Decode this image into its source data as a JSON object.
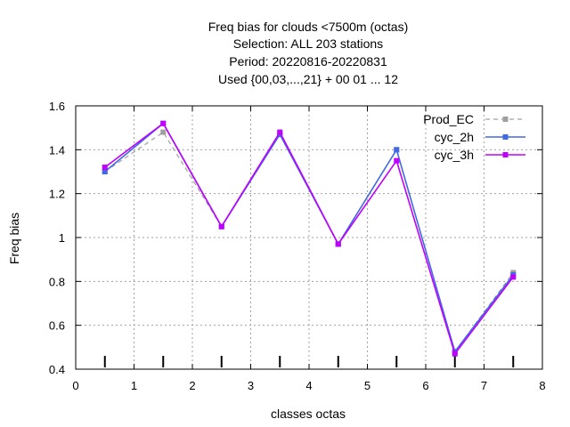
{
  "chart_data": {
    "type": "line",
    "title_lines": [
      "Freq bias  for clouds <7500m (octas)",
      "Selection: ALL    203 stations",
      "Period: 20220816-20220831",
      "Used {00,03,...,21} + 00 01 ... 12"
    ],
    "xlabel": "classes octas",
    "ylabel": "Freq bias",
    "xlim": [
      0,
      8
    ],
    "ylim": [
      0.4,
      1.6
    ],
    "xticks": [
      "0",
      "1",
      "2",
      "3",
      "4",
      "5",
      "6",
      "7",
      "8"
    ],
    "yticks": [
      "0.4",
      "0.6",
      "0.8",
      "1",
      "1.2",
      "1.4",
      "1.6"
    ],
    "grid": true,
    "legend_position": "top-right",
    "x": [
      0.5,
      1.5,
      2.5,
      3.5,
      4.5,
      5.5,
      6.5,
      7.5
    ],
    "series": [
      {
        "name": "Prod_EC",
        "color": "#a0a0a0",
        "dashed": true,
        "values": [
          1.3,
          1.48,
          1.05,
          1.47,
          0.97,
          1.4,
          0.48,
          0.84
        ]
      },
      {
        "name": "cyc_2h",
        "color": "#4169e1",
        "dashed": false,
        "values": [
          1.3,
          1.52,
          1.05,
          1.47,
          0.97,
          1.4,
          0.48,
          0.83
        ]
      },
      {
        "name": "cyc_3h",
        "color": "#c000ff",
        "dashed": false,
        "values": [
          1.32,
          1.52,
          1.05,
          1.48,
          0.97,
          1.35,
          0.47,
          0.82
        ]
      }
    ]
  }
}
